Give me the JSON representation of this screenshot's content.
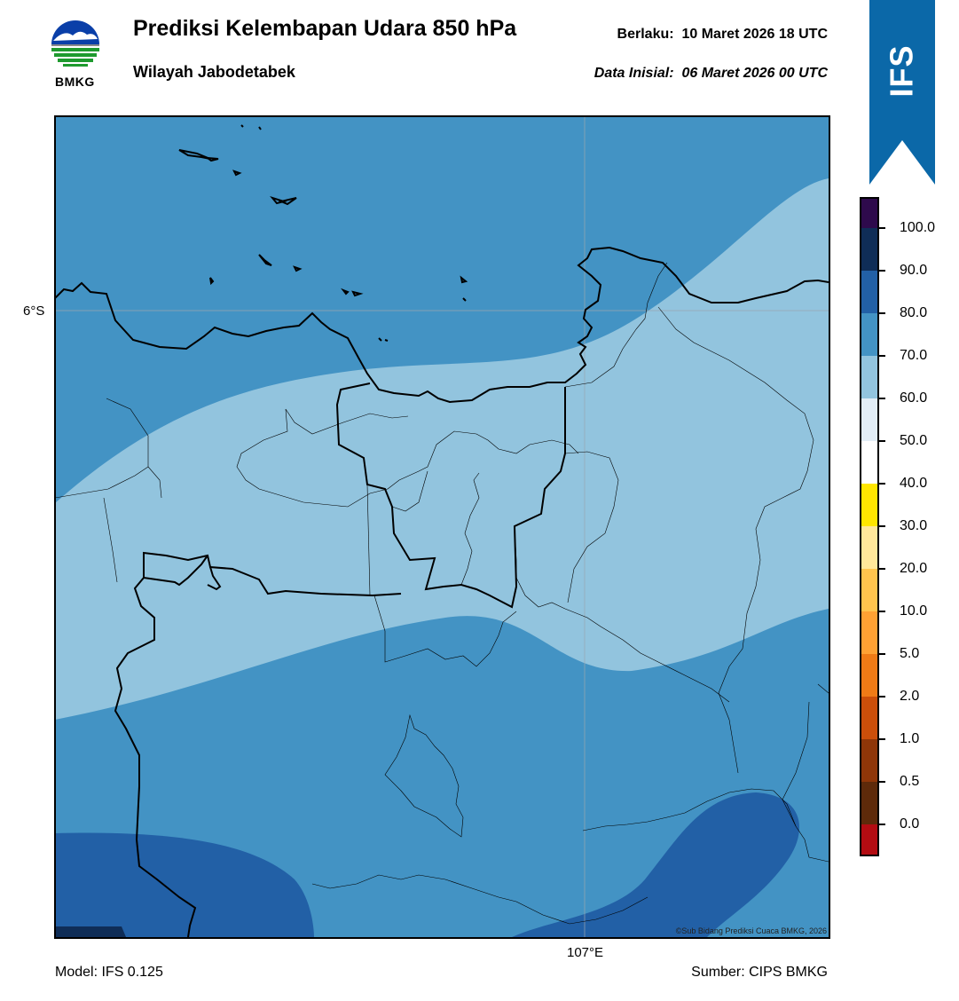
{
  "header": {
    "title": "Prediksi Kelembapan Udara 850 hPa",
    "region": "Wilayah Jabodetabek",
    "valid_label": "Berlaku:",
    "valid_value": "10 Maret 2026 18 UTC",
    "init_label": "Data Inisial:",
    "init_value": "06 Maret 2026 00 UTC"
  },
  "logo": {
    "text": "BMKG",
    "icon": "bmkg-logo-icon",
    "colors": [
      "#0a3fa8",
      "#1e9a2e",
      "#8a8a8a"
    ]
  },
  "ribbon": {
    "text": "IFS",
    "color": "#0b68a8"
  },
  "map": {
    "lat_label": "6°S",
    "lon_label": "107°E",
    "copyright": "©Sub Bidang Prediksi Cuaca BMKG, 2026"
  },
  "colorbar": {
    "ticks": [
      "100.0",
      "90.0",
      "80.0",
      "70.0",
      "60.0",
      "50.0",
      "40.0",
      "30.0",
      "20.0",
      "10.0",
      "5.0",
      "2.0",
      "1.0",
      "0.5",
      "0.0"
    ],
    "colors_top_to_bottom": [
      "#2e0a4c",
      "#0f2d57",
      "#2260a6",
      "#4393c4",
      "#92c4de",
      "#e2edf6",
      "#ffffff",
      "#ffe600",
      "#ffe79a",
      "#ffc44d",
      "#ffa133",
      "#f07b16",
      "#cc4f0a",
      "#8f3608",
      "#5e2a0a",
      "#b30c12",
      "#e8443a"
    ]
  },
  "footer": {
    "model": "Model: IFS 0.125",
    "source": "Sumber: CIPS BMKG"
  }
}
